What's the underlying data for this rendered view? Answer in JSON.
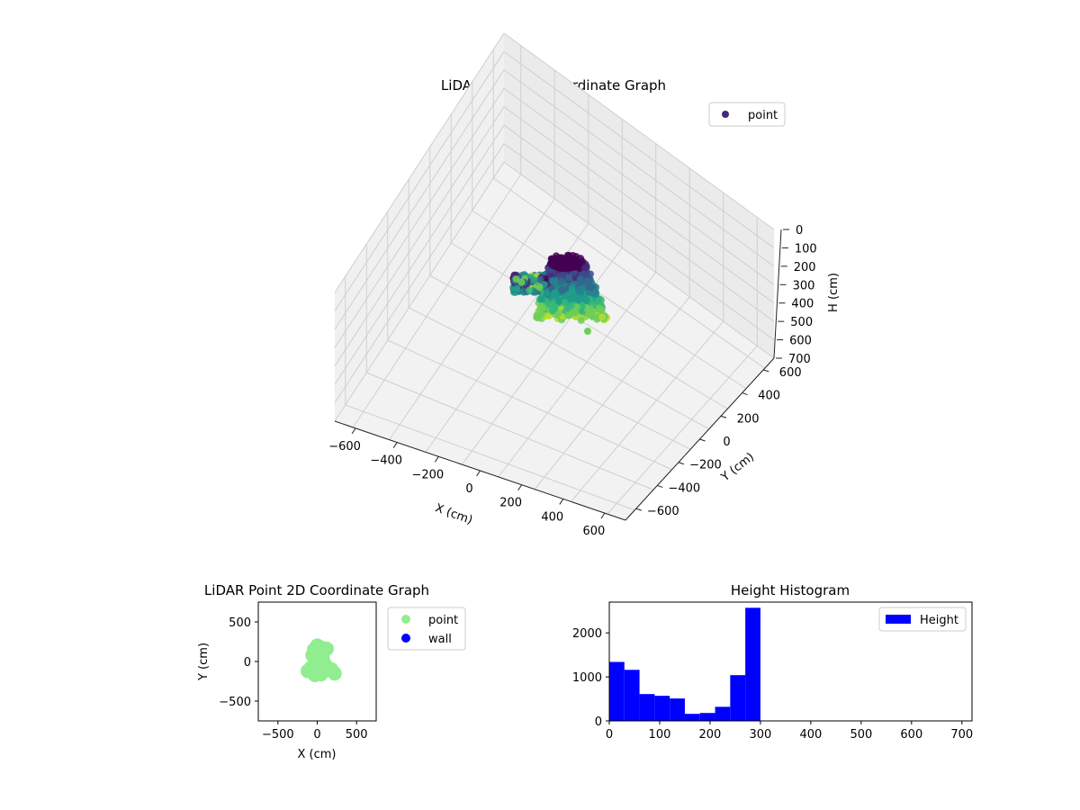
{
  "chart_data": [
    {
      "type": "scatter",
      "projection": "3d",
      "title": "LiDAR Point 3D Coordinate Graph",
      "xlabel": "X (cm)",
      "ylabel": "Y (cm)",
      "zlabel": "H (cm)",
      "xlim": [
        -700,
        700
      ],
      "ylim": [
        -700,
        700
      ],
      "zlim": [
        0,
        700
      ],
      "z_inverted": true,
      "x_ticks": [
        "−600",
        "−400",
        "−200",
        "0",
        "200",
        "400",
        "600"
      ],
      "y_ticks": [
        "−600",
        "−400",
        "−200",
        "0",
        "200",
        "400",
        "600"
      ],
      "z_ticks": [
        "0",
        "100",
        "200",
        "300",
        "400",
        "500",
        "600",
        "700"
      ],
      "grid": true,
      "colormap": "viridis",
      "legend": {
        "position": "upper-right",
        "entries": [
          {
            "label": "point",
            "color": "#482878"
          }
        ]
      },
      "series": [
        {
          "name": "point",
          "description_points": [
            {
              "x": 30,
              "y": 40,
              "h": 20
            },
            {
              "x": -40,
              "y": 60,
              "h": 30
            },
            {
              "x": 80,
              "y": 20,
              "h": 60
            },
            {
              "x": -120,
              "y": 40,
              "h": 100
            },
            {
              "x": -180,
              "y": 60,
              "h": 140
            },
            {
              "x": 40,
              "y": -30,
              "h": 170
            },
            {
              "x": 110,
              "y": -10,
              "h": 200
            },
            {
              "x": -20,
              "y": -60,
              "h": 230
            },
            {
              "x": 80,
              "y": -80,
              "h": 260
            },
            {
              "x": 20,
              "y": -120,
              "h": 285
            },
            {
              "x": 150,
              "y": -150,
              "h": 290
            }
          ]
        }
      ]
    },
    {
      "type": "scatter",
      "title": "LiDAR Point 2D Coordinate Graph",
      "xlabel": "X (cm)",
      "ylabel": "Y (cm)",
      "xlim": [
        -750,
        750
      ],
      "ylim": [
        -750,
        750
      ],
      "x_ticks": [
        -500,
        0,
        500
      ],
      "y_ticks": [
        -500,
        0,
        500
      ],
      "legend": {
        "position": "outside-right",
        "entries": [
          {
            "label": "point",
            "color": "#90ee90"
          },
          {
            "label": "wall",
            "color": "#0000ff"
          }
        ]
      },
      "series": [
        {
          "name": "point",
          "color": "#90ee90",
          "x": [
            0,
            40,
            -40,
            80,
            -60,
            20,
            -20,
            60,
            100,
            -80,
            0,
            50,
            -30,
            120,
            -120,
            220,
            180,
            30,
            70,
            -10
          ],
          "y": [
            200,
            180,
            150,
            120,
            80,
            60,
            20,
            -10,
            -40,
            -80,
            -120,
            -160,
            -170,
            160,
            -120,
            -150,
            -100,
            0,
            40,
            100
          ]
        },
        {
          "name": "wall",
          "color": "#0000ff",
          "x": [],
          "y": []
        }
      ]
    },
    {
      "type": "bar",
      "subtype": "histogram",
      "title": "Height Histogram",
      "xlabel": "",
      "ylabel": "",
      "xlim": [
        0,
        720
      ],
      "ylim": [
        0,
        2700
      ],
      "x_ticks": [
        0,
        100,
        200,
        300,
        400,
        500,
        600,
        700
      ],
      "y_ticks": [
        0,
        1000,
        2000
      ],
      "bar_color": "#0000ff",
      "bin_edges": [
        0,
        30,
        60,
        90,
        120,
        150,
        180,
        210,
        240,
        270,
        300
      ],
      "values": [
        1340,
        1160,
        610,
        570,
        510,
        160,
        180,
        320,
        1040,
        2570
      ],
      "legend": {
        "position": "upper-right",
        "entries": [
          {
            "label": "Height",
            "color": "#0000ff"
          }
        ]
      }
    }
  ]
}
